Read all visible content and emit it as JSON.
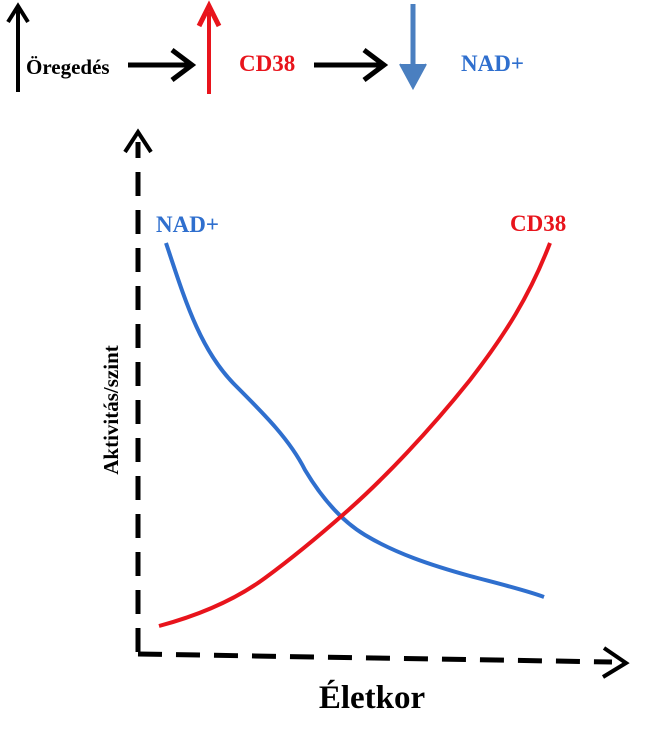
{
  "header": {
    "aging_label": "Öregedés",
    "cd38_label": "CD38",
    "nad_label": "NAD+"
  },
  "chart_data": {
    "type": "line",
    "xlabel": "Életkor",
    "ylabel": "Aktivitás/szint",
    "series": [
      {
        "name": "NAD+",
        "trend": "decreasing",
        "color": "#2f6fce"
      },
      {
        "name": "CD38",
        "trend": "increasing",
        "color": "#e8141c"
      }
    ],
    "colors": {
      "nad": "#2f6fce",
      "cd38": "#e8141c",
      "aging_arrow": "#000000",
      "cd38_arrow": "#e8141c",
      "nad_arrow": "#4a7fc0"
    }
  }
}
